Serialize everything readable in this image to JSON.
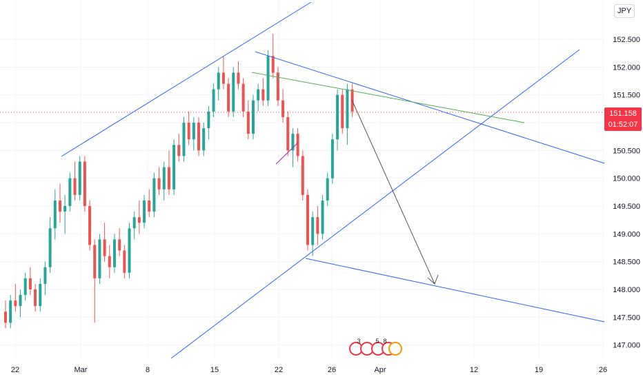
{
  "currency_label": "JPY",
  "last_price": {
    "value": "151.158",
    "countdown": "01:52:07"
  },
  "colors": {
    "up": "#26a69a",
    "down": "#ef5350",
    "trend": "#2962ff",
    "mid_line": "#4caf50",
    "arrow": "#555555",
    "price_line": "#f23645"
  },
  "event_badges": [
    "3",
    "5",
    "8"
  ],
  "chart_data": {
    "type": "candlestick",
    "title": "",
    "xlabel": "",
    "ylabel": "",
    "x_ticks": [
      "22",
      "Mar",
      "8",
      "15",
      "22",
      "26",
      "Apr",
      "12",
      "19",
      "26"
    ],
    "y_ticks": [
      "147.000",
      "147.500",
      "148.000",
      "148.500",
      "149.000",
      "149.500",
      "150.000",
      "150.500",
      "151.000",
      "151.500",
      "152.000",
      "152.500"
    ],
    "ylim": [
      146.75,
      153.0
    ],
    "grid": true,
    "candles": [
      [
        147.6,
        147.8,
        147.3,
        147.4
      ],
      [
        147.4,
        147.9,
        147.3,
        147.8
      ],
      [
        147.8,
        148.1,
        147.6,
        147.7
      ],
      [
        147.7,
        148.0,
        147.5,
        147.9
      ],
      [
        147.9,
        148.3,
        147.8,
        148.2
      ],
      [
        148.2,
        148.4,
        147.9,
        148.0
      ],
      [
        148.0,
        148.1,
        147.6,
        147.7
      ],
      [
        147.7,
        148.2,
        147.6,
        148.1
      ],
      [
        148.1,
        148.5,
        147.9,
        148.4
      ],
      [
        148.4,
        149.3,
        148.3,
        149.1
      ],
      [
        149.1,
        149.8,
        148.9,
        149.6
      ],
      [
        149.6,
        149.9,
        149.2,
        149.4
      ],
      [
        149.4,
        149.7,
        149.0,
        149.5
      ],
      [
        149.5,
        150.1,
        149.4,
        150.0
      ],
      [
        150.0,
        150.3,
        149.6,
        149.7
      ],
      [
        149.7,
        150.4,
        149.6,
        150.3
      ],
      [
        150.3,
        150.4,
        149.4,
        149.5
      ],
      [
        149.5,
        149.6,
        148.7,
        148.8
      ],
      [
        148.8,
        148.9,
        147.4,
        148.2
      ],
      [
        148.2,
        149.0,
        148.1,
        148.9
      ],
      [
        148.9,
        149.2,
        148.5,
        148.6
      ],
      [
        148.6,
        148.8,
        148.2,
        148.4
      ],
      [
        148.4,
        149.0,
        148.3,
        148.9
      ],
      [
        148.9,
        149.1,
        148.6,
        148.7
      ],
      [
        148.7,
        148.8,
        148.2,
        148.3
      ],
      [
        148.3,
        149.2,
        148.2,
        149.1
      ],
      [
        149.1,
        149.4,
        148.9,
        149.3
      ],
      [
        149.3,
        149.6,
        149.0,
        149.2
      ],
      [
        149.2,
        149.7,
        149.1,
        149.6
      ],
      [
        149.6,
        149.8,
        149.3,
        149.4
      ],
      [
        149.4,
        150.1,
        149.3,
        150.0
      ],
      [
        150.0,
        150.2,
        149.7,
        149.8
      ],
      [
        149.8,
        150.3,
        149.6,
        150.2
      ],
      [
        150.2,
        150.5,
        149.7,
        149.8
      ],
      [
        149.8,
        150.7,
        149.7,
        150.6
      ],
      [
        150.6,
        150.8,
        150.3,
        150.4
      ],
      [
        150.4,
        151.1,
        150.3,
        151.0
      ],
      [
        151.0,
        151.2,
        150.6,
        150.7
      ],
      [
        150.7,
        151.1,
        150.5,
        151.0
      ],
      [
        151.0,
        151.1,
        150.4,
        150.5
      ],
      [
        150.5,
        151.0,
        150.4,
        150.9
      ],
      [
        150.9,
        151.3,
        150.7,
        151.2
      ],
      [
        151.2,
        151.7,
        151.1,
        151.6
      ],
      [
        151.6,
        152.0,
        151.4,
        151.9
      ],
      [
        151.9,
        152.2,
        151.6,
        151.7
      ],
      [
        151.7,
        151.8,
        151.1,
        151.2
      ],
      [
        151.2,
        152.0,
        151.1,
        151.9
      ],
      [
        151.9,
        152.1,
        151.6,
        151.7
      ],
      [
        151.7,
        151.8,
        151.1,
        151.2
      ],
      [
        151.2,
        151.4,
        150.7,
        150.8
      ],
      [
        150.8,
        151.5,
        150.7,
        151.4
      ],
      [
        151.4,
        151.7,
        151.2,
        151.6
      ],
      [
        151.6,
        151.8,
        151.3,
        151.4
      ],
      [
        151.4,
        152.3,
        151.3,
        152.2
      ],
      [
        152.2,
        152.6,
        151.8,
        151.9
      ],
      [
        151.9,
        152.0,
        151.3,
        151.4
      ],
      [
        151.4,
        151.6,
        151.0,
        151.1
      ],
      [
        151.1,
        151.2,
        150.4,
        150.5
      ],
      [
        150.5,
        150.9,
        150.2,
        150.8
      ],
      [
        150.8,
        150.9,
        150.3,
        150.4
      ],
      [
        150.4,
        150.5,
        149.6,
        149.7
      ],
      [
        149.7,
        149.8,
        148.7,
        148.8
      ],
      [
        148.8,
        149.4,
        148.6,
        149.3
      ],
      [
        149.3,
        149.5,
        148.8,
        149.0
      ],
      [
        149.0,
        149.7,
        148.9,
        149.6
      ],
      [
        149.6,
        150.1,
        149.5,
        150.0
      ],
      [
        150.0,
        150.8,
        149.9,
        150.7
      ],
      [
        150.7,
        151.6,
        150.5,
        151.5
      ],
      [
        151.5,
        151.6,
        150.8,
        150.9
      ],
      [
        150.9,
        151.7,
        150.6,
        151.6
      ],
      [
        151.6,
        151.7,
        151.1,
        151.2
      ]
    ]
  }
}
